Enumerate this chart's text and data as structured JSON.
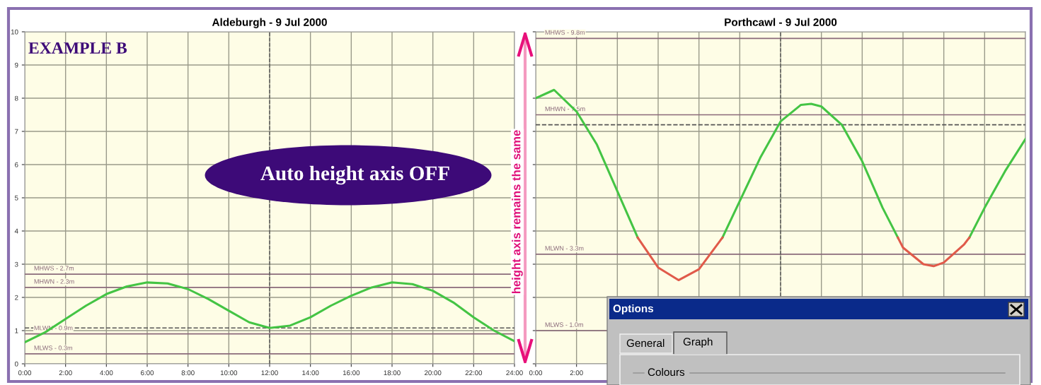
{
  "chart_data": [
    {
      "type": "line",
      "title": "Aldeburgh - 9 Jul 2000",
      "x": [
        0,
        1,
        2,
        3,
        4,
        5,
        6,
        7,
        8,
        9,
        10,
        11,
        12,
        13,
        14,
        15,
        16,
        17,
        18,
        19,
        20,
        21,
        22,
        23,
        24
      ],
      "series": [
        {
          "color": "#44c444",
          "values": [
            0.65,
            0.95,
            1.35,
            1.75,
            2.1,
            2.33,
            2.45,
            2.42,
            2.25,
            1.95,
            1.6,
            1.25,
            1.08,
            1.15,
            1.4,
            1.75,
            2.05,
            2.3,
            2.45,
            2.4,
            2.2,
            1.85,
            1.4,
            1.0,
            0.68
          ]
        }
      ],
      "xlim": [
        0,
        24
      ],
      "xticks": [
        {
          "value": 0,
          "label": "0:00"
        },
        {
          "value": 2,
          "label": "2:00"
        },
        {
          "value": 4,
          "label": "4:00"
        },
        {
          "value": 6,
          "label": "6:00"
        },
        {
          "value": 8,
          "label": "8:00"
        },
        {
          "value": 10,
          "label": "10:00"
        },
        {
          "value": 12,
          "label": "12:00"
        },
        {
          "value": 14,
          "label": "14:00"
        },
        {
          "value": 16,
          "label": "16:00"
        },
        {
          "value": 18,
          "label": "18:00"
        },
        {
          "value": 20,
          "label": "20:00"
        },
        {
          "value": 22,
          "label": "22:00"
        },
        {
          "value": 24,
          "label": "24:00"
        }
      ],
      "ylim": [
        0,
        10
      ],
      "yticks": [
        0,
        1,
        2,
        3,
        4,
        5,
        6,
        7,
        8,
        9,
        10
      ],
      "grid": true,
      "marker": "none",
      "line_style": "solid",
      "ref_lines": [
        {
          "axis": "y",
          "value": 2.7,
          "label": "MHWS - 2.7m",
          "color": "#8a6a7a"
        },
        {
          "axis": "y",
          "value": 2.3,
          "label": "MHWN - 2.3m",
          "color": "#8a6a7a"
        },
        {
          "axis": "y",
          "value": 0.9,
          "label": "MLWN - 0.9m",
          "color": "#8a6a7a"
        },
        {
          "axis": "y",
          "value": 0.3,
          "label": "MLWS - 0.3m",
          "color": "#8a6a7a"
        },
        {
          "axis": "y",
          "value": 1.08,
          "color": "#555555",
          "line_style": "dashed"
        },
        {
          "axis": "x",
          "value": 12,
          "color": "#555555",
          "line_style": "dashed"
        }
      ],
      "annotations": [
        "EXAMPLE B",
        "Auto height axis OFF"
      ]
    },
    {
      "type": "line",
      "title": "Porthcawl - 9 Jul 2000",
      "x": [
        0,
        0.9,
        2,
        3,
        4,
        5,
        6,
        7,
        8,
        9.15,
        10,
        11,
        12,
        13,
        13.5,
        14,
        15,
        16,
        17,
        17.75,
        18,
        19,
        19.5,
        20,
        21,
        21.25,
        22,
        23,
        24
      ],
      "series": [
        {
          "color": "#44c444",
          "values": [
            8.0,
            8.25,
            7.6,
            6.6,
            5.2,
            3.8,
            null,
            null,
            null,
            3.8,
            4.9,
            6.2,
            7.3,
            7.8,
            7.83,
            7.75,
            7.2,
            6.1,
            4.7,
            3.8,
            null,
            null,
            null,
            null,
            null,
            3.8,
            4.7,
            5.8,
            6.77
          ]
        },
        {
          "color": "#e05a4a",
          "values": [
            null,
            null,
            null,
            null,
            null,
            3.8,
            2.9,
            2.52,
            2.85,
            3.8,
            null,
            null,
            null,
            null,
            null,
            null,
            null,
            null,
            null,
            3.8,
            3.5,
            3.0,
            2.94,
            3.05,
            3.6,
            3.8,
            null,
            null,
            null
          ]
        }
      ],
      "xlim": [
        0,
        24
      ],
      "xticks": [
        {
          "value": 0,
          "label": "0:00"
        },
        {
          "value": 2,
          "label": "2:00"
        },
        {
          "value": 4,
          "label": null
        },
        {
          "value": 6,
          "label": null
        },
        {
          "value": 8,
          "label": null
        },
        {
          "value": 10,
          "label": null
        },
        {
          "value": 12,
          "label": null
        },
        {
          "value": 14,
          "label": null
        },
        {
          "value": 16,
          "label": null
        },
        {
          "value": 18,
          "label": null
        },
        {
          "value": 20,
          "label": null
        },
        {
          "value": 22,
          "label": null
        },
        {
          "value": 24,
          "label": null
        }
      ],
      "ylim": [
        0,
        10
      ],
      "yticks": [
        0,
        1,
        2,
        3,
        4,
        5,
        6,
        7,
        8,
        9,
        10
      ],
      "tick_labels": "x",
      "grid": true,
      "marker": "none",
      "line_style": "solid",
      "ref_lines": [
        {
          "axis": "y",
          "value": 9.8,
          "label": "MHWS - 9.8m",
          "color": "#8a6a7a"
        },
        {
          "axis": "y",
          "value": 7.5,
          "label": "MHWN - 7.5m",
          "color": "#8a6a7a"
        },
        {
          "axis": "y",
          "value": 3.3,
          "label": "MLWN - 3.3m",
          "color": "#8a6a7a"
        },
        {
          "axis": "y",
          "value": 1.0,
          "label": "MLWS - 1.0m",
          "color": "#8a6a7a"
        },
        {
          "axis": "y",
          "value": 7.2,
          "color": "#555555",
          "line_style": "dashed"
        },
        {
          "axis": "x",
          "value": 12,
          "color": "#555555",
          "line_style": "dashed"
        }
      ],
      "annotations": [
        "height axis remains the same"
      ]
    },
    {
      "type": "other",
      "annotations": [
        "Options",
        "General",
        "Graph",
        "Colours"
      ]
    }
  ]
}
